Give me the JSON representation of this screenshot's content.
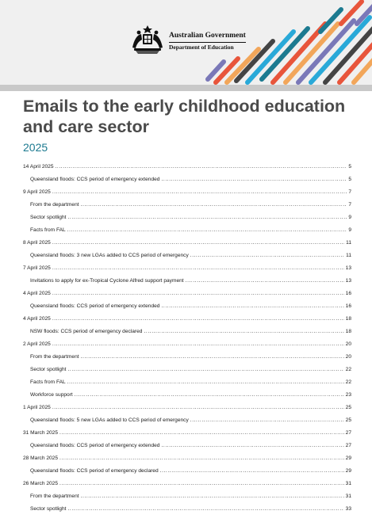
{
  "header": {
    "org_primary": "Australian Government",
    "org_secondary": "Department of Education",
    "logo_icon": "commonwealth-coat-of-arms-icon",
    "stripe_colors": [
      "#e8553b",
      "#f2a65a",
      "#7a78b8",
      "#29a9d8",
      "#1c7a90",
      "#444444"
    ]
  },
  "document": {
    "title": "Emails to the early childhood education and care sector",
    "year": "2025"
  },
  "toc": [
    {
      "level": 1,
      "text": "14 April 2025",
      "page": "5"
    },
    {
      "level": 2,
      "text": "Queensland floods: CCS period of emergency extended",
      "page": "5"
    },
    {
      "level": 1,
      "text": "9 April 2025",
      "page": "7"
    },
    {
      "level": 2,
      "text": "From the department",
      "page": "7"
    },
    {
      "level": 2,
      "text": "Sector spotlight",
      "page": "9"
    },
    {
      "level": 2,
      "text": "Facts from FAL",
      "page": "9"
    },
    {
      "level": 1,
      "text": "8 April 2025",
      "page": "11"
    },
    {
      "level": 2,
      "text": "Queensland floods: 3 new LGAs added to CCS period of emergency",
      "page": "11"
    },
    {
      "level": 1,
      "text": "7 April 2025",
      "page": "13"
    },
    {
      "level": 2,
      "text": "Invitations to apply for ex-Tropical Cyclone Alfred support payment",
      "page": "13"
    },
    {
      "level": 1,
      "text": "4 April 2025",
      "page": "16"
    },
    {
      "level": 2,
      "text": "Queensland floods: CCS period of emergency extended",
      "page": "16"
    },
    {
      "level": 1,
      "text": "4 April 2025",
      "page": "18"
    },
    {
      "level": 2,
      "text": "NSW floods: CCS period of emergency declared",
      "page": "18"
    },
    {
      "level": 1,
      "text": "2 April 2025",
      "page": "20"
    },
    {
      "level": 2,
      "text": "From the department",
      "page": "20"
    },
    {
      "level": 2,
      "text": "Sector spotlight",
      "page": "22"
    },
    {
      "level": 2,
      "text": "Facts from FAL",
      "page": "22"
    },
    {
      "level": 2,
      "text": "Workforce support",
      "page": "23"
    },
    {
      "level": 1,
      "text": "1 April 2025",
      "page": "25"
    },
    {
      "level": 2,
      "text": "Queensland floods: 5 new LGAs added to CCS period of emergency",
      "page": "25"
    },
    {
      "level": 1,
      "text": "31 March 2025",
      "page": "27"
    },
    {
      "level": 2,
      "text": "Queensland floods: CCS period of emergency extended",
      "page": "27"
    },
    {
      "level": 1,
      "text": "28 March 2025",
      "page": "29"
    },
    {
      "level": 2,
      "text": "Queensland floods: CCS period of emergency declared",
      "page": "29"
    },
    {
      "level": 1,
      "text": "26 March 2025",
      "page": "31"
    },
    {
      "level": 2,
      "text": "From the department",
      "page": "31"
    },
    {
      "level": 2,
      "text": "Sector spotlight",
      "page": "33"
    }
  ]
}
